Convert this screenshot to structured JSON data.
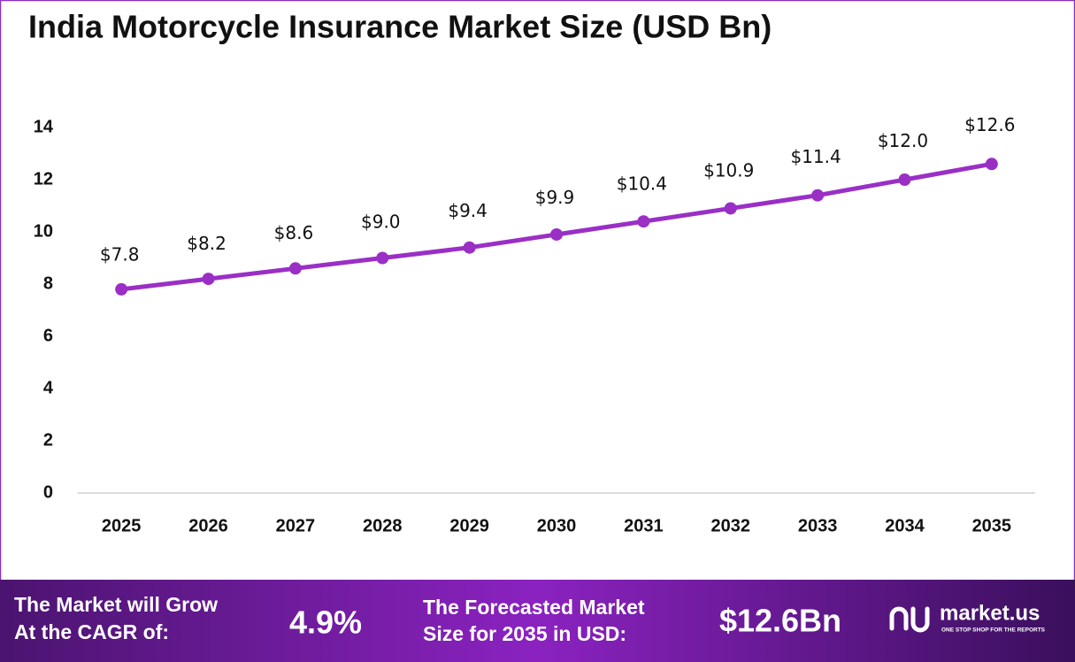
{
  "chart_data": {
    "type": "line",
    "title": "India Motorcycle Insurance Market Size (USD Bn)",
    "categories": [
      "2025",
      "2026",
      "2027",
      "2028",
      "2029",
      "2030",
      "2031",
      "2032",
      "2033",
      "2034",
      "2035"
    ],
    "values": [
      7.8,
      8.2,
      8.6,
      9.0,
      9.4,
      9.9,
      10.4,
      10.9,
      11.4,
      12.0,
      12.6
    ],
    "value_labels": [
      "$7.8",
      "$8.2",
      "$8.6",
      "$9.0",
      "$9.4",
      "$9.9",
      "$10.4",
      "$10.9",
      "$11.4",
      "$12.0",
      "$12.6"
    ],
    "color": "#9a2fc6",
    "ylim": [
      0,
      14
    ],
    "yticks": [
      0,
      2,
      4,
      6,
      8,
      10,
      12,
      14
    ],
    "grid": false
  },
  "footer": {
    "cagr_text": [
      "The Market will Grow",
      "At the CAGR of:"
    ],
    "cagr_value": "4.9%",
    "forecast_text": [
      "The Forecasted Market",
      "Size for 2035 in USD:"
    ],
    "forecast_value": "$12.6Bn",
    "brand": "market.us",
    "tagline": "ONE STOP SHOP FOR THE REPORTS"
  }
}
